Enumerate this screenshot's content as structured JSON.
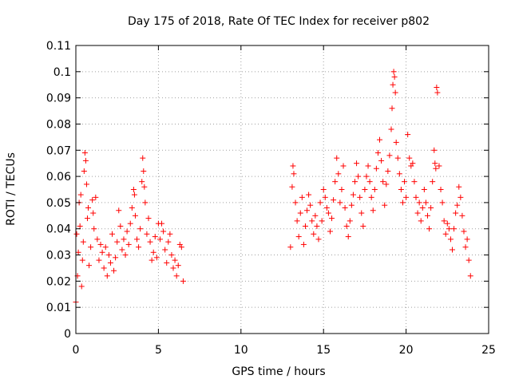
{
  "chart_data": {
    "type": "scatter",
    "title": "Day 175 of 2018, Rate Of TEC Index for receiver p802",
    "xlabel": "GPS time / hours",
    "ylabel": "ROTI / TECUs",
    "xlim": [
      0,
      25
    ],
    "ylim": [
      0,
      0.11
    ],
    "xticks": [
      0,
      5,
      10,
      15,
      20,
      25
    ],
    "xtick_labels": [
      "0",
      "5",
      "10",
      "15",
      "20",
      "25"
    ],
    "yticks": [
      0,
      0.01,
      0.02,
      0.03,
      0.04,
      0.05,
      0.06,
      0.07,
      0.08,
      0.09,
      0.1,
      0.11
    ],
    "ytick_labels": [
      "0",
      "0.01",
      "0.02",
      "0.03",
      "0.04",
      "0.05",
      "0.06",
      "0.07",
      "0.08",
      "0.09",
      "0.1",
      "0.11"
    ],
    "grid": true,
    "marker": "+",
    "series_color": "#ff0000",
    "series": [
      {
        "name": "ROTI",
        "points": [
          [
            0.0,
            0.012
          ],
          [
            0.05,
            0.038
          ],
          [
            0.1,
            0.022
          ],
          [
            0.15,
            0.031
          ],
          [
            0.2,
            0.05
          ],
          [
            0.25,
            0.041
          ],
          [
            0.3,
            0.053
          ],
          [
            0.35,
            0.018
          ],
          [
            0.4,
            0.028
          ],
          [
            0.45,
            0.035
          ],
          [
            0.5,
            0.062
          ],
          [
            0.55,
            0.069
          ],
          [
            0.6,
            0.066
          ],
          [
            0.65,
            0.057
          ],
          [
            0.7,
            0.044
          ],
          [
            0.75,
            0.048
          ],
          [
            0.8,
            0.026
          ],
          [
            0.9,
            0.033
          ],
          [
            1.0,
            0.051
          ],
          [
            1.05,
            0.046
          ],
          [
            1.1,
            0.04
          ],
          [
            1.2,
            0.052
          ],
          [
            1.3,
            0.036
          ],
          [
            1.4,
            0.028
          ],
          [
            1.5,
            0.034
          ],
          [
            1.6,
            0.031
          ],
          [
            1.7,
            0.025
          ],
          [
            1.8,
            0.033
          ],
          [
            1.9,
            0.022
          ],
          [
            2.0,
            0.03
          ],
          [
            2.1,
            0.027
          ],
          [
            2.2,
            0.038
          ],
          [
            2.3,
            0.024
          ],
          [
            2.4,
            0.029
          ],
          [
            2.5,
            0.035
          ],
          [
            2.6,
            0.047
          ],
          [
            2.7,
            0.041
          ],
          [
            2.8,
            0.032
          ],
          [
            2.9,
            0.036
          ],
          [
            3.0,
            0.03
          ],
          [
            3.1,
            0.039
          ],
          [
            3.2,
            0.034
          ],
          [
            3.3,
            0.042
          ],
          [
            3.4,
            0.048
          ],
          [
            3.5,
            0.055
          ],
          [
            3.55,
            0.053
          ],
          [
            3.6,
            0.045
          ],
          [
            3.7,
            0.036
          ],
          [
            3.8,
            0.033
          ],
          [
            3.9,
            0.04
          ],
          [
            4.0,
            0.058
          ],
          [
            4.05,
            0.067
          ],
          [
            4.1,
            0.062
          ],
          [
            4.15,
            0.056
          ],
          [
            4.2,
            0.05
          ],
          [
            4.3,
            0.038
          ],
          [
            4.4,
            0.044
          ],
          [
            4.5,
            0.035
          ],
          [
            4.6,
            0.028
          ],
          [
            4.7,
            0.031
          ],
          [
            4.8,
            0.037
          ],
          [
            4.9,
            0.029
          ],
          [
            5.0,
            0.042
          ],
          [
            5.1,
            0.036
          ],
          [
            5.2,
            0.042
          ],
          [
            5.3,
            0.039
          ],
          [
            5.4,
            0.032
          ],
          [
            5.5,
            0.027
          ],
          [
            5.6,
            0.035
          ],
          [
            5.7,
            0.038
          ],
          [
            5.8,
            0.03
          ],
          [
            5.9,
            0.025
          ],
          [
            6.0,
            0.028
          ],
          [
            6.1,
            0.022
          ],
          [
            6.2,
            0.026
          ],
          [
            6.3,
            0.034
          ],
          [
            6.4,
            0.033
          ],
          [
            6.5,
            0.02
          ],
          [
            13.0,
            0.033
          ],
          [
            13.1,
            0.056
          ],
          [
            13.15,
            0.064
          ],
          [
            13.2,
            0.061
          ],
          [
            13.3,
            0.05
          ],
          [
            13.4,
            0.043
          ],
          [
            13.5,
            0.037
          ],
          [
            13.6,
            0.046
          ],
          [
            13.7,
            0.052
          ],
          [
            13.8,
            0.034
          ],
          [
            13.9,
            0.041
          ],
          [
            14.0,
            0.047
          ],
          [
            14.1,
            0.053
          ],
          [
            14.2,
            0.049
          ],
          [
            14.3,
            0.043
          ],
          [
            14.4,
            0.038
          ],
          [
            14.5,
            0.045
          ],
          [
            14.6,
            0.041
          ],
          [
            14.7,
            0.036
          ],
          [
            14.8,
            0.05
          ],
          [
            14.9,
            0.043
          ],
          [
            15.0,
            0.055
          ],
          [
            15.1,
            0.052
          ],
          [
            15.2,
            0.048
          ],
          [
            15.3,
            0.046
          ],
          [
            15.4,
            0.039
          ],
          [
            15.5,
            0.044
          ],
          [
            15.6,
            0.051
          ],
          [
            15.7,
            0.058
          ],
          [
            15.8,
            0.067
          ],
          [
            15.9,
            0.061
          ],
          [
            16.0,
            0.05
          ],
          [
            16.1,
            0.055
          ],
          [
            16.2,
            0.064
          ],
          [
            16.3,
            0.048
          ],
          [
            16.4,
            0.041
          ],
          [
            16.5,
            0.037
          ],
          [
            16.6,
            0.043
          ],
          [
            16.7,
            0.049
          ],
          [
            16.8,
            0.053
          ],
          [
            16.9,
            0.058
          ],
          [
            17.0,
            0.065
          ],
          [
            17.1,
            0.06
          ],
          [
            17.2,
            0.052
          ],
          [
            17.3,
            0.046
          ],
          [
            17.4,
            0.041
          ],
          [
            17.5,
            0.055
          ],
          [
            17.6,
            0.06
          ],
          [
            17.7,
            0.064
          ],
          [
            17.8,
            0.058
          ],
          [
            17.9,
            0.052
          ],
          [
            18.0,
            0.047
          ],
          [
            18.1,
            0.055
          ],
          [
            18.2,
            0.063
          ],
          [
            18.3,
            0.069
          ],
          [
            18.4,
            0.074
          ],
          [
            18.5,
            0.066
          ],
          [
            18.6,
            0.058
          ],
          [
            18.7,
            0.049
          ],
          [
            18.8,
            0.057
          ],
          [
            18.9,
            0.062
          ],
          [
            19.0,
            0.068
          ],
          [
            19.1,
            0.078
          ],
          [
            19.15,
            0.086
          ],
          [
            19.2,
            0.095
          ],
          [
            19.25,
            0.1
          ],
          [
            19.3,
            0.098
          ],
          [
            19.35,
            0.092
          ],
          [
            19.4,
            0.073
          ],
          [
            19.5,
            0.067
          ],
          [
            19.6,
            0.061
          ],
          [
            19.7,
            0.055
          ],
          [
            19.8,
            0.05
          ],
          [
            19.9,
            0.058
          ],
          [
            20.0,
            0.052
          ],
          [
            20.1,
            0.076
          ],
          [
            20.2,
            0.067
          ],
          [
            20.3,
            0.064
          ],
          [
            20.4,
            0.065
          ],
          [
            20.5,
            0.058
          ],
          [
            20.6,
            0.052
          ],
          [
            20.7,
            0.046
          ],
          [
            20.8,
            0.05
          ],
          [
            20.9,
            0.043
          ],
          [
            21.0,
            0.048
          ],
          [
            21.1,
            0.055
          ],
          [
            21.2,
            0.05
          ],
          [
            21.3,
            0.045
          ],
          [
            21.4,
            0.04
          ],
          [
            21.5,
            0.048
          ],
          [
            21.6,
            0.058
          ],
          [
            21.7,
            0.07
          ],
          [
            21.75,
            0.065
          ],
          [
            21.8,
            0.063
          ],
          [
            21.85,
            0.094
          ],
          [
            21.9,
            0.092
          ],
          [
            22.0,
            0.064
          ],
          [
            22.1,
            0.055
          ],
          [
            22.2,
            0.05
          ],
          [
            22.3,
            0.043
          ],
          [
            22.4,
            0.038
          ],
          [
            22.5,
            0.042
          ],
          [
            22.6,
            0.04
          ],
          [
            22.7,
            0.036
          ],
          [
            22.8,
            0.032
          ],
          [
            22.9,
            0.04
          ],
          [
            23.0,
            0.046
          ],
          [
            23.1,
            0.049
          ],
          [
            23.2,
            0.056
          ],
          [
            23.3,
            0.052
          ],
          [
            23.4,
            0.045
          ],
          [
            23.5,
            0.039
          ],
          [
            23.6,
            0.033
          ],
          [
            23.7,
            0.036
          ],
          [
            23.8,
            0.028
          ],
          [
            23.9,
            0.022
          ]
        ]
      }
    ]
  }
}
